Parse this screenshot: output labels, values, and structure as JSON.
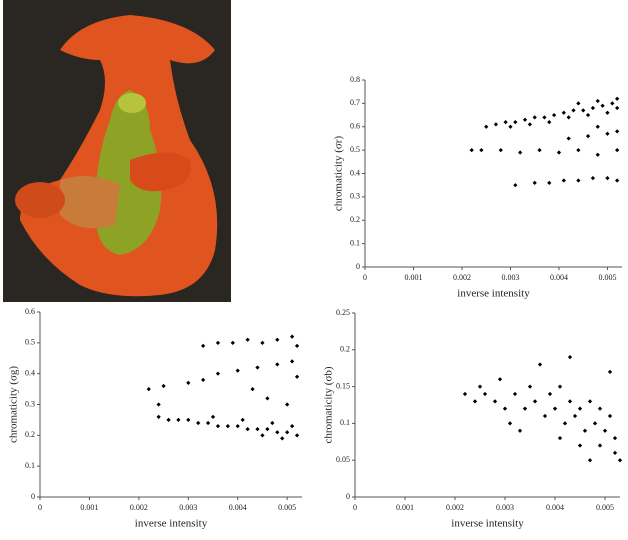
{
  "chart_data": [
    {
      "type": "scatter",
      "xlabel": "inverse intensity",
      "ylabel": "chromaticity (σr)",
      "color": "#000000",
      "xlim": [
        0,
        0.0053
      ],
      "ylim": [
        0,
        0.8
      ],
      "xticks": [
        0,
        0.001,
        0.002,
        0.003,
        0.004,
        0.005
      ],
      "yticks": [
        0,
        0.1,
        0.2,
        0.3,
        0.4,
        0.5,
        0.6,
        0.7,
        0.8
      ],
      "x": [
        0.0025,
        0.0027,
        0.0029,
        0.0031,
        0.0033,
        0.0035,
        0.0037,
        0.0039,
        0.0041,
        0.0043,
        0.0045,
        0.0047,
        0.0049,
        0.0051,
        0.0052,
        0.003,
        0.0034,
        0.0038,
        0.0042,
        0.0046,
        0.005,
        0.0048,
        0.0044,
        0.0052,
        0.0022,
        0.0024,
        0.0028,
        0.0032,
        0.0036,
        0.004,
        0.0044,
        0.0048,
        0.0052,
        0.0042,
        0.0046,
        0.005,
        0.0048,
        0.0052,
        0.0031,
        0.0035,
        0.0038,
        0.0041,
        0.0044,
        0.0047,
        0.005,
        0.0052
      ],
      "values": [
        0.6,
        0.61,
        0.62,
        0.62,
        0.63,
        0.64,
        0.64,
        0.65,
        0.66,
        0.67,
        0.67,
        0.68,
        0.69,
        0.7,
        0.72,
        0.6,
        0.61,
        0.62,
        0.64,
        0.65,
        0.66,
        0.71,
        0.7,
        0.68,
        0.5,
        0.5,
        0.5,
        0.49,
        0.5,
        0.49,
        0.5,
        0.48,
        0.5,
        0.55,
        0.56,
        0.57,
        0.6,
        0.58,
        0.35,
        0.36,
        0.36,
        0.37,
        0.37,
        0.38,
        0.38,
        0.37
      ]
    },
    {
      "type": "scatter",
      "xlabel": "inverse intensity",
      "ylabel": "chromaticity (σg)",
      "color": "#000000",
      "xlim": [
        0,
        0.0053
      ],
      "ylim": [
        0,
        0.6
      ],
      "xticks": [
        0,
        0.001,
        0.002,
        0.003,
        0.004,
        0.005
      ],
      "yticks": [
        0,
        0.1,
        0.2,
        0.3,
        0.4,
        0.5,
        0.6
      ],
      "x": [
        0.0024,
        0.0026,
        0.0028,
        0.003,
        0.0032,
        0.0034,
        0.0036,
        0.0038,
        0.004,
        0.0042,
        0.0044,
        0.0046,
        0.0048,
        0.005,
        0.0052,
        0.0035,
        0.0041,
        0.0047,
        0.0051,
        0.0049,
        0.0045,
        0.0022,
        0.0025,
        0.0024,
        0.0033,
        0.0036,
        0.0039,
        0.0042,
        0.0045,
        0.0048,
        0.0051,
        0.0052,
        0.003,
        0.0033,
        0.0036,
        0.004,
        0.0044,
        0.0048,
        0.0051,
        0.0052,
        0.0046,
        0.005,
        0.0043
      ],
      "values": [
        0.26,
        0.25,
        0.25,
        0.25,
        0.24,
        0.24,
        0.23,
        0.23,
        0.23,
        0.22,
        0.22,
        0.22,
        0.21,
        0.21,
        0.2,
        0.26,
        0.25,
        0.24,
        0.23,
        0.19,
        0.2,
        0.35,
        0.36,
        0.3,
        0.49,
        0.5,
        0.5,
        0.51,
        0.5,
        0.51,
        0.52,
        0.49,
        0.37,
        0.38,
        0.4,
        0.41,
        0.42,
        0.43,
        0.44,
        0.39,
        0.32,
        0.3,
        0.35
      ]
    },
    {
      "type": "scatter",
      "xlabel": "inverse intensity",
      "ylabel": "chromaticity (σb)",
      "color": "#000000",
      "xlim": [
        0,
        0.0053
      ],
      "ylim": [
        0,
        0.25
      ],
      "xticks": [
        0,
        0.001,
        0.002,
        0.003,
        0.004,
        0.005
      ],
      "yticks": [
        0,
        0.05,
        0.1,
        0.15,
        0.2,
        0.25
      ],
      "x": [
        0.0022,
        0.0024,
        0.0026,
        0.0028,
        0.003,
        0.0032,
        0.0034,
        0.0036,
        0.0038,
        0.004,
        0.0042,
        0.0044,
        0.0046,
        0.0048,
        0.005,
        0.0052,
        0.0031,
        0.0035,
        0.0037,
        0.0039,
        0.0041,
        0.0043,
        0.0045,
        0.0047,
        0.0049,
        0.0051,
        0.0052,
        0.0051,
        0.0043,
        0.0047,
        0.0029,
        0.0033,
        0.0041,
        0.0045,
        0.0049,
        0.0053,
        0.0025
      ],
      "values": [
        0.14,
        0.13,
        0.14,
        0.13,
        0.12,
        0.14,
        0.12,
        0.13,
        0.11,
        0.12,
        0.1,
        0.11,
        0.09,
        0.1,
        0.09,
        0.08,
        0.1,
        0.15,
        0.18,
        0.14,
        0.15,
        0.13,
        0.12,
        0.13,
        0.12,
        0.11,
        0.06,
        0.17,
        0.19,
        0.05,
        0.16,
        0.09,
        0.08,
        0.07,
        0.07,
        0.05,
        0.15
      ]
    }
  ]
}
